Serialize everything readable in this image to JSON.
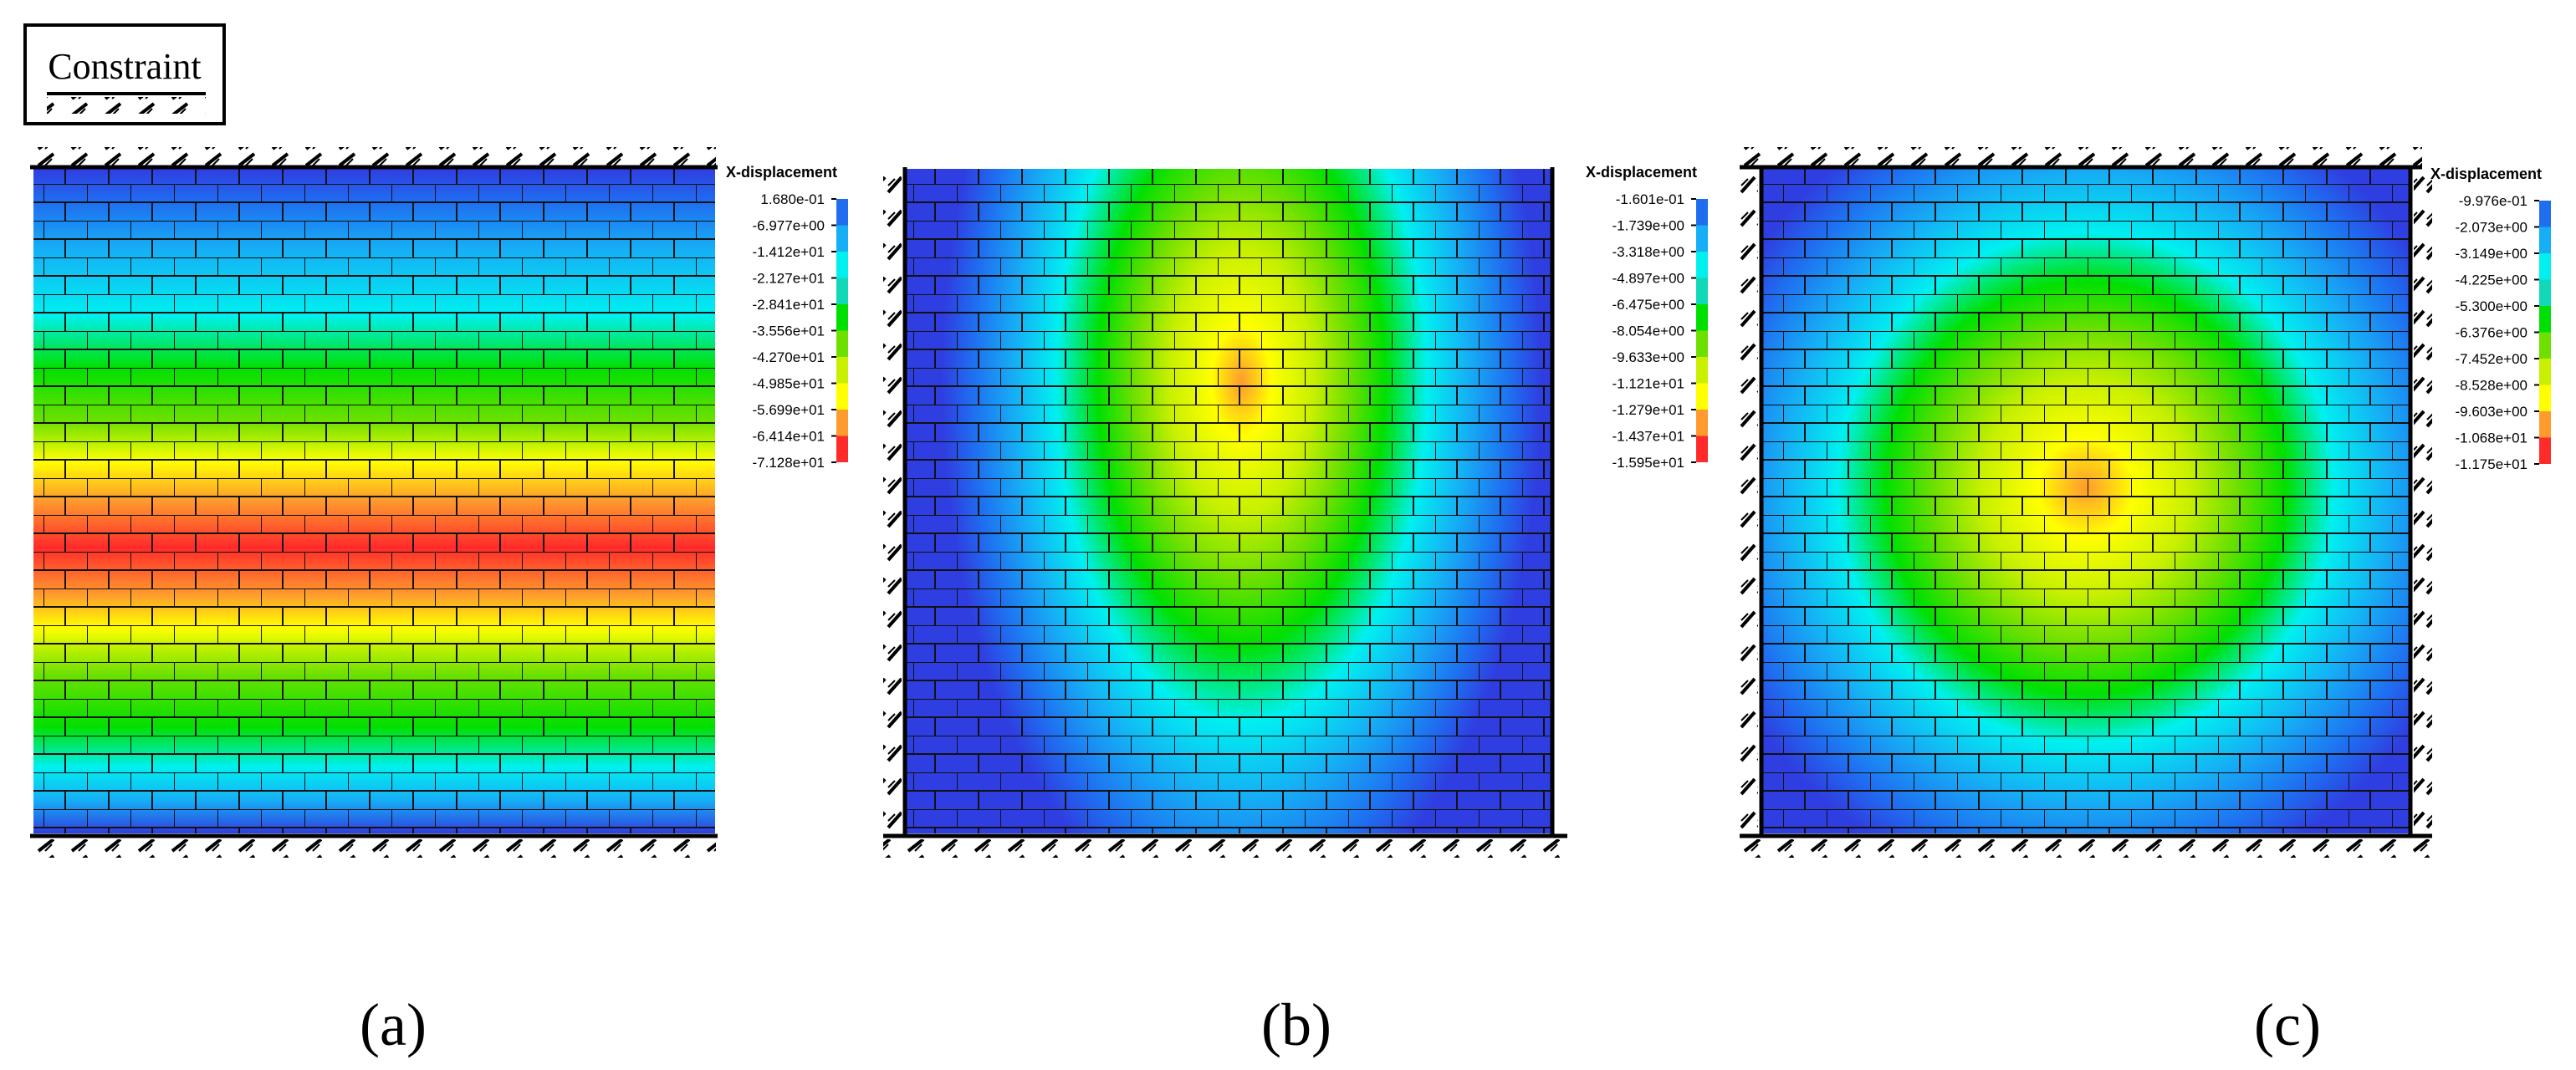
{
  "constraint_label": "Constraint",
  "colors": {
    "scale": [
      "#2f3ee0",
      "#1f6ef0",
      "#16aef5",
      "#00f0f0",
      "#11d9b7",
      "#00e000",
      "#6ee000",
      "#c8f000",
      "#ffff00",
      "#ff9a2e",
      "#ff2a2a"
    ],
    "brick_line": "#111111",
    "hatch": "#000000"
  },
  "panels": [
    {
      "id": "a",
      "caption": "(a)",
      "constraint": "top and bottom edges fixed",
      "legend_title": "X-displacement",
      "legend_ticks": [
        "1.680e-01",
        "-6.977e+00",
        "-1.412e+01",
        "-2.127e+01",
        "-2.841e+01",
        "-3.556e+01",
        "-4.270e+01",
        "-4.985e+01",
        "-5.699e+01",
        "-6.414e+01",
        "-7.128e+01"
      ],
      "field_pattern": "horizontal bands, maximum magnitude slightly below mid-height"
    },
    {
      "id": "b",
      "caption": "(b)",
      "constraint": "left, right and bottom edges fixed",
      "legend_title": "X-displacement",
      "legend_ticks": [
        "-1.601e-01",
        "-1.739e+00",
        "-3.318e+00",
        "-4.897e+00",
        "-6.475e+00",
        "-8.054e+00",
        "-9.633e+00",
        "-1.121e+01",
        "-1.279e+01",
        "-1.437e+01",
        "-1.595e+01"
      ],
      "field_pattern": "U-shaped contours, vertical elongated maximum at top centre"
    },
    {
      "id": "c",
      "caption": "(c)",
      "constraint": "all four edges fixed",
      "legend_title": "X-displacement",
      "legend_ticks": [
        "-9.976e-01",
        "-2.073e+00",
        "-3.149e+00",
        "-4.225e+00",
        "-5.300e+00",
        "-6.376e+00",
        "-7.452e+00",
        "-8.528e+00",
        "-9.603e+00",
        "-1.068e+01",
        "-1.175e+01"
      ],
      "field_pattern": "concentric oval contours, maximum at centre"
    }
  ]
}
